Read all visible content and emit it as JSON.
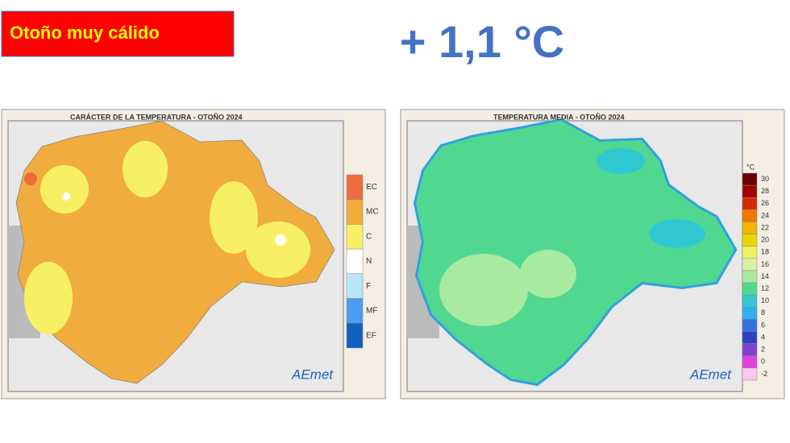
{
  "slide": {
    "badge": "Otoño muy cálido",
    "anomaly": "+ 1,1 °C"
  },
  "maps": [
    {
      "title": "CARÁCTER DE LA TEMPERATURA - OTOÑO 2024",
      "logo": "AEmet",
      "legend": [
        {
          "label": "EC",
          "color": "#f06a40"
        },
        {
          "label": "MC",
          "color": "#f0ac3c"
        },
        {
          "label": "C",
          "color": "#f8f064"
        },
        {
          "label": "N",
          "color": "#ffffff"
        },
        {
          "label": "F",
          "color": "#b8e6f8"
        },
        {
          "label": "MF",
          "color": "#4c9cf0"
        },
        {
          "label": "EF",
          "color": "#1060c0"
        }
      ]
    },
    {
      "title": "TEMPERATURA MEDIA - OTOÑO 2024",
      "unit": "°C",
      "logo": "AEmet",
      "legend": [
        {
          "label": "30",
          "color": "#6b0000"
        },
        {
          "label": "28",
          "color": "#a00000"
        },
        {
          "label": "26",
          "color": "#d42a00"
        },
        {
          "label": "24",
          "color": "#f07800"
        },
        {
          "label": "22",
          "color": "#f5b400"
        },
        {
          "label": "20",
          "color": "#e8d800"
        },
        {
          "label": "18",
          "color": "#f0f060"
        },
        {
          "label": "16",
          "color": "#d8f0a0"
        },
        {
          "label": "14",
          "color": "#a8eaa0"
        },
        {
          "label": "12",
          "color": "#50d890"
        },
        {
          "label": "10",
          "color": "#30c8d0"
        },
        {
          "label": "8",
          "color": "#30b0f0"
        },
        {
          "label": "6",
          "color": "#3070e0"
        },
        {
          "label": "4",
          "color": "#3040c0"
        },
        {
          "label": "2",
          "color": "#8040d0"
        },
        {
          "label": "0",
          "color": "#e040e0"
        },
        {
          "label": "-2",
          "color": "#f8c8f0"
        }
      ]
    }
  ]
}
